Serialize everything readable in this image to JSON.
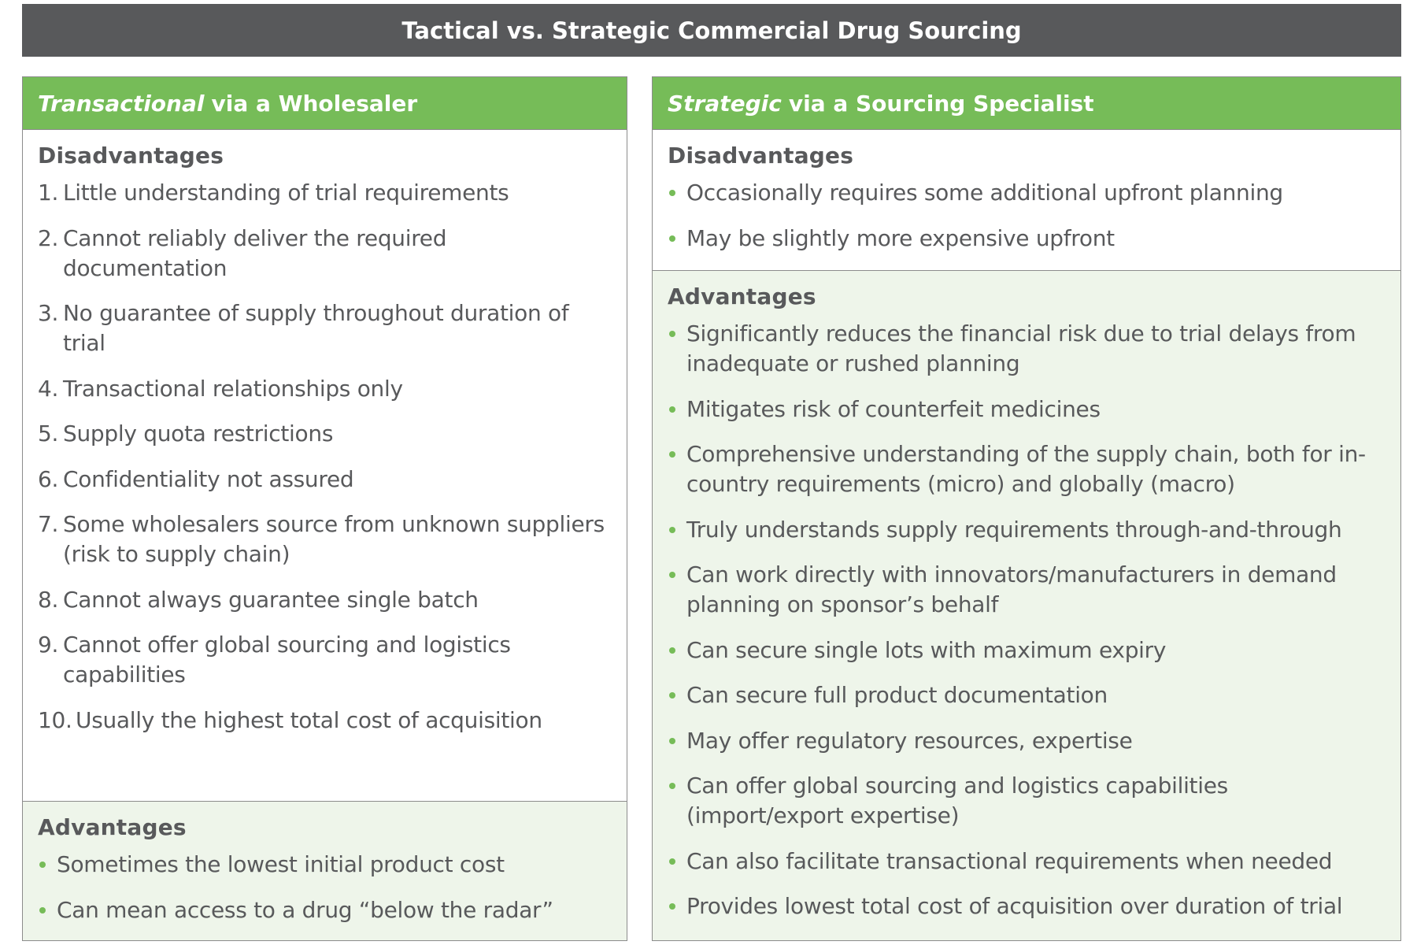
{
  "title": "Tactical vs. Strategic Commercial Drug Sourcing",
  "left": {
    "header_em": "Transactional",
    "header_rest": "via a Wholesaler",
    "disadvantages_title": "Disadvantages",
    "disadvantages": [
      {
        "num": "1.",
        "text": "Little understanding of trial requirements"
      },
      {
        "num": "2.",
        "text": "Cannot reliably deliver the required documentation"
      },
      {
        "num": "3.",
        "text": "No guarantee of supply throughout duration of trial"
      },
      {
        "num": "4.",
        "text": "Transactional relationships only"
      },
      {
        "num": "5.",
        "text": "Supply quota restrictions"
      },
      {
        "num": "6.",
        "text": "Confidentiality not assured"
      },
      {
        "num": "7.",
        "text": "Some wholesalers source from unknown suppliers (risk to supply chain)"
      },
      {
        "num": "8.",
        "text": "Cannot always guarantee single batch"
      },
      {
        "num": "9.",
        "text": "Cannot offer global sourcing and logistics capabilities"
      },
      {
        "num": "10.",
        "text": "Usually the highest total cost of acquisition"
      }
    ],
    "advantages_title": "Advantages",
    "advantages": [
      "Sometimes the lowest initial product cost",
      "Can mean access to a drug “below the radar”"
    ]
  },
  "right": {
    "header_em": "Strategic",
    "header_rest": "via a Sourcing Specialist",
    "disadvantages_title": "Disadvantages",
    "disadvantages": [
      "Occasionally requires some additional upfront planning",
      "May be slightly more expensive upfront"
    ],
    "advantages_title": "Advantages",
    "advantages": [
      "Significantly reduces the financial risk due to trial delays from inadequate or rushed planning",
      "Mitigates risk of counterfeit medicines",
      "Comprehensive understanding of the supply chain, both for in-country requirements (micro) and globally (macro)",
      "Truly understands supply requirements through-and-through",
      "Can work directly with innovators/manufacturers in demand planning on sponsor’s behalf",
      "Can secure single lots with maximum expiry",
      "Can secure full product documentation",
      "May offer regulatory resources, expertise",
      "Can offer global sourcing and logistics capabilities (import/export expertise)",
      "Can also facilitate transactional requirements when needed",
      "Provides lowest total cost of acquisition over duration of trial"
    ]
  },
  "colors": {
    "title_bg": "#58595b",
    "header_green": "#76bc58",
    "advantages_bg": "#eef5ea",
    "text": "#58595b"
  }
}
